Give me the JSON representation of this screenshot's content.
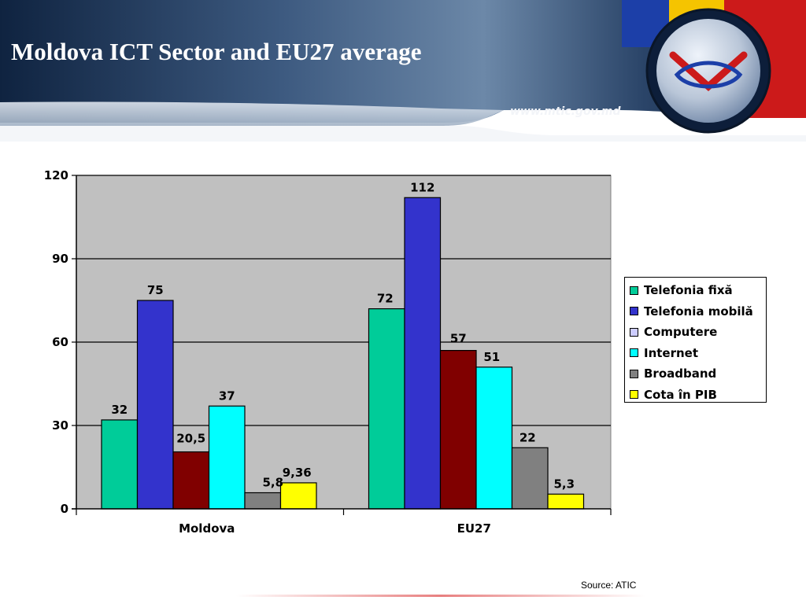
{
  "slide": {
    "title": "Moldova ICT Sector and EU27 average",
    "website": "www.mtic.gov.md",
    "source": "Source: ATIC"
  },
  "colors": {
    "banner_dark": "#0f2340",
    "banner_light": "#5c7898",
    "plot_bg": "#c0c0c0",
    "flag_blue": "#1c3fa8",
    "flag_yellow": "#f5c400",
    "flag_red": "#cc1a1a"
  },
  "chart_data": {
    "type": "bar",
    "categories": [
      "Moldova",
      "EU27"
    ],
    "series": [
      {
        "name": "Telefonia fixă",
        "color": "#00cc99",
        "values": [
          32,
          72
        ],
        "labels": [
          "32",
          "72"
        ]
      },
      {
        "name": "Telefonia mobilă",
        "color": "#3333cc",
        "values": [
          75,
          112
        ],
        "labels": [
          "75",
          "112"
        ]
      },
      {
        "name": "Computere",
        "color": "#ccccff",
        "values": [
          null,
          null
        ],
        "labels": [
          "",
          ""
        ]
      },
      {
        "name": "Internet",
        "color": "#00ffff",
        "values": [
          37,
          51
        ],
        "labels": [
          "37",
          "51"
        ]
      },
      {
        "name": "Broadband",
        "color": "#808080",
        "values": [
          5.8,
          22
        ],
        "labels": [
          "5,8",
          "22"
        ]
      },
      {
        "name": "Cota în PIB",
        "color": "#ffff00",
        "values": [
          9.36,
          5.3
        ],
        "labels": [
          "9,36",
          "5,3"
        ]
      }
    ],
    "extra_series": {
      "name": "",
      "color": "#800000",
      "values": [
        20.5,
        57
      ],
      "labels": [
        "20,5",
        "57"
      ]
    },
    "yticks": [
      0,
      30,
      60,
      90,
      120
    ],
    "ylim": [
      0,
      120
    ],
    "grid": true,
    "legend": "right"
  }
}
